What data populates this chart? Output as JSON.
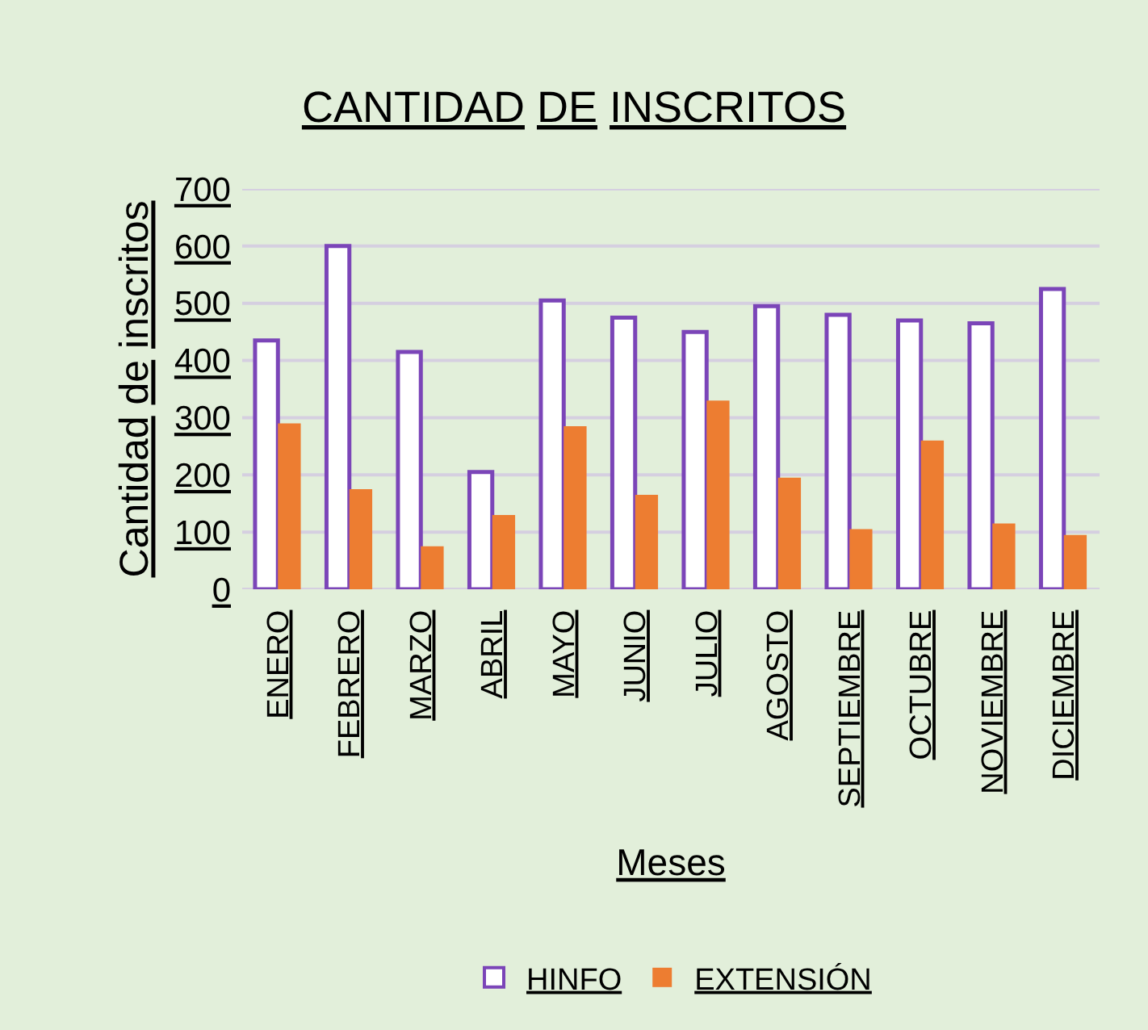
{
  "chart_data": {
    "type": "bar",
    "title": "CANTIDAD DE INSCRITOS",
    "xlabel": "Meses",
    "ylabel": "Cantidad de inscritos",
    "categories": [
      "ENERO",
      "FEBRERO",
      "MARZO",
      "ABRIL",
      "MAYO",
      "JUNIO",
      "JULIO",
      "AGOSTO",
      "SEPTIEMBRE",
      "OCTUBRE",
      "NOVIEMBRE",
      "DICIEMBRE"
    ],
    "series": [
      {
        "name": "HINFO",
        "color": "#ffffff",
        "values": [
          435,
          600,
          415,
          205,
          505,
          475,
          450,
          495,
          480,
          470,
          465,
          525
        ]
      },
      {
        "name": "EXTENSIÓN",
        "color": "#ed7d31",
        "values": [
          290,
          175,
          75,
          130,
          285,
          165,
          330,
          195,
          105,
          260,
          115,
          95
        ]
      }
    ],
    "ylim": [
      0,
      700
    ],
    "yticks": [
      0,
      100,
      200,
      300,
      400,
      500,
      600,
      700
    ],
    "grid": "y",
    "legend": "bottom"
  }
}
